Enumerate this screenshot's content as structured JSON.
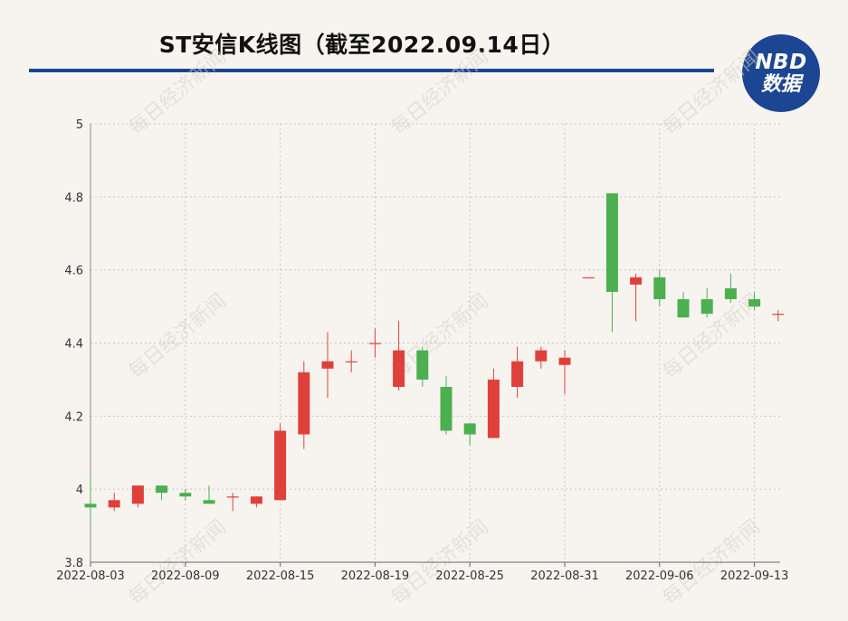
{
  "header": {
    "title": "ST安信K线图（截至2022.09.14日）",
    "logo_line1": "NBD",
    "logo_line2": "数据"
  },
  "watermark": "每日经济新闻",
  "colors": {
    "up": "#e0403a",
    "down": "#4caf50",
    "accent": "#1c4593"
  },
  "chart_data": {
    "type": "candlestick",
    "title": "ST安信K线图（截至2022.09.14日）",
    "ylim": [
      3.8,
      5.0
    ],
    "yticks": [
      "3.8",
      "4",
      "4.2",
      "4.4",
      "4.6",
      "4.8",
      "5"
    ],
    "xticks": [
      "2022-08-03",
      "2022-08-09",
      "2022-08-15",
      "2022-08-19",
      "2022-08-25",
      "2022-08-31",
      "2022-09-06",
      "2022-09-13"
    ],
    "candles": [
      {
        "date": "2022-08-03",
        "open": 3.96,
        "close": 3.95,
        "high": 4.04,
        "low": 3.91
      },
      {
        "date": "2022-08-04",
        "open": 3.95,
        "close": 3.97,
        "high": 3.99,
        "low": 3.94
      },
      {
        "date": "2022-08-05",
        "open": 3.96,
        "close": 4.01,
        "high": 4.01,
        "low": 3.95
      },
      {
        "date": "2022-08-08",
        "open": 4.01,
        "close": 3.99,
        "high": 4.01,
        "low": 3.97
      },
      {
        "date": "2022-08-09",
        "open": 3.99,
        "close": 3.98,
        "high": 4.0,
        "low": 3.97
      },
      {
        "date": "2022-08-10",
        "open": 3.97,
        "close": 3.96,
        "high": 4.01,
        "low": 3.96
      },
      {
        "date": "2022-08-11",
        "open": 3.98,
        "close": 3.98,
        "high": 3.99,
        "low": 3.94
      },
      {
        "date": "2022-08-12",
        "open": 3.96,
        "close": 3.98,
        "high": 3.98,
        "low": 3.95
      },
      {
        "date": "2022-08-15",
        "open": 3.97,
        "close": 4.16,
        "high": 4.18,
        "low": 3.97
      },
      {
        "date": "2022-08-16",
        "open": 4.15,
        "close": 4.32,
        "high": 4.35,
        "low": 4.11
      },
      {
        "date": "2022-08-17",
        "open": 4.33,
        "close": 4.35,
        "high": 4.43,
        "low": 4.25
      },
      {
        "date": "2022-08-18",
        "open": 4.35,
        "close": 4.35,
        "high": 4.38,
        "low": 4.32
      },
      {
        "date": "2022-08-19",
        "open": 4.4,
        "close": 4.4,
        "high": 4.44,
        "low": 4.36
      },
      {
        "date": "2022-08-22",
        "open": 4.28,
        "close": 4.38,
        "high": 4.46,
        "low": 4.27
      },
      {
        "date": "2022-08-23",
        "open": 4.38,
        "close": 4.3,
        "high": 4.39,
        "low": 4.28
      },
      {
        "date": "2022-08-24",
        "open": 4.28,
        "close": 4.16,
        "high": 4.31,
        "low": 4.15
      },
      {
        "date": "2022-08-25",
        "open": 4.18,
        "close": 4.15,
        "high": 4.18,
        "low": 4.12
      },
      {
        "date": "2022-08-26",
        "open": 4.14,
        "close": 4.3,
        "high": 4.33,
        "low": 4.14
      },
      {
        "date": "2022-08-29",
        "open": 4.28,
        "close": 4.35,
        "high": 4.39,
        "low": 4.25
      },
      {
        "date": "2022-08-30",
        "open": 4.35,
        "close": 4.38,
        "high": 4.39,
        "low": 4.33
      },
      {
        "date": "2022-08-31",
        "open": 4.34,
        "close": 4.36,
        "high": 4.38,
        "low": 4.26
      },
      {
        "date": "2022-09-01",
        "open": 4.58,
        "close": 4.58,
        "high": 4.58,
        "low": 4.58
      },
      {
        "date": "2022-09-02",
        "open": 4.81,
        "close": 4.54,
        "high": 4.81,
        "low": 4.43
      },
      {
        "date": "2022-09-05",
        "open": 4.56,
        "close": 4.58,
        "high": 4.59,
        "low": 4.46
      },
      {
        "date": "2022-09-06",
        "open": 4.58,
        "close": 4.52,
        "high": 4.6,
        "low": 4.5
      },
      {
        "date": "2022-09-07",
        "open": 4.52,
        "close": 4.47,
        "high": 4.54,
        "low": 4.47
      },
      {
        "date": "2022-09-08",
        "open": 4.52,
        "close": 4.48,
        "high": 4.55,
        "low": 4.47
      },
      {
        "date": "2022-09-09",
        "open": 4.55,
        "close": 4.52,
        "high": 4.59,
        "low": 4.51
      },
      {
        "date": "2022-09-13",
        "open": 4.52,
        "close": 4.5,
        "high": 4.54,
        "low": 4.49
      },
      {
        "date": "2022-09-14",
        "open": 4.48,
        "close": 4.48,
        "high": 4.49,
        "low": 4.46
      }
    ]
  }
}
